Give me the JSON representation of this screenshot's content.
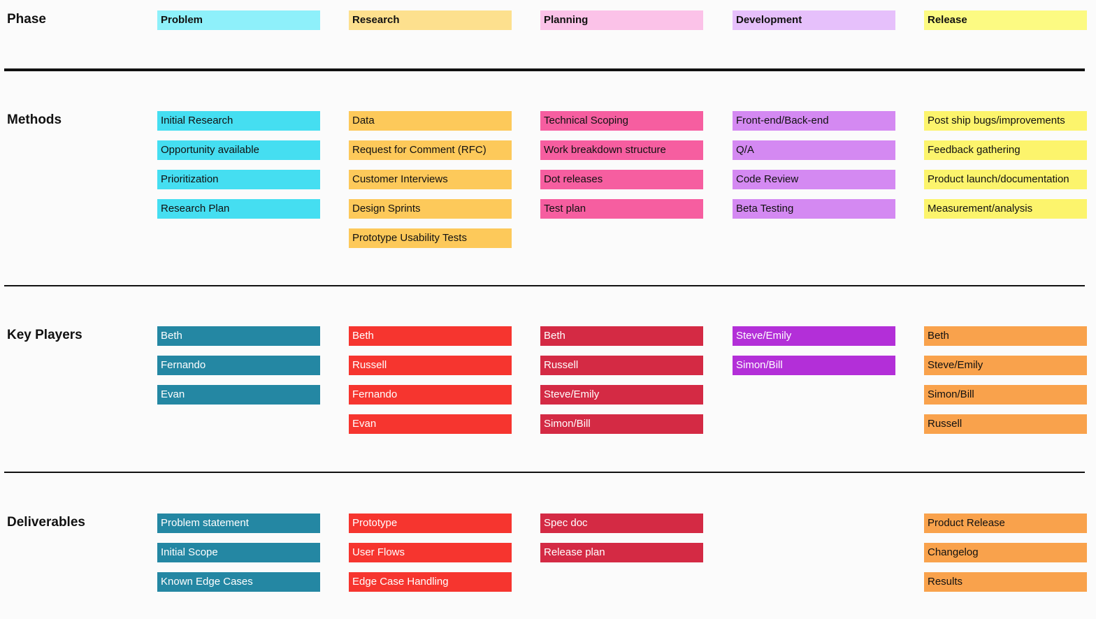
{
  "rows": [
    {
      "label": "Phase"
    },
    {
      "label": "Methods"
    },
    {
      "label": "Key Players"
    },
    {
      "label": "Deliverables"
    }
  ],
  "columns": [
    {
      "phase": "Problem",
      "colors": {
        "header": "#8ef0fa",
        "methods": "#45def1",
        "dark": "#2487a3"
      },
      "methods": [
        "Initial Research",
        "Opportunity available",
        "Prioritization",
        "Research Plan"
      ],
      "key_players": [
        "Beth",
        "Fernando",
        "Evan"
      ],
      "deliverables": [
        "Problem statement",
        "Initial Scope",
        "Known Edge Cases"
      ]
    },
    {
      "phase": "Research",
      "colors": {
        "header": "#fde08e",
        "methods": "#fdc95a",
        "dark": "#f6352f"
      },
      "methods": [
        "Data",
        "Request for Comment (RFC)",
        "Customer Interviews",
        "Design Sprints",
        "Prototype Usability Tests"
      ],
      "key_players": [
        "Beth",
        "Russell",
        "Fernando",
        "Evan"
      ],
      "deliverables": [
        "Prototype",
        "User Flows",
        "Edge Case Handling"
      ]
    },
    {
      "phase": "Planning",
      "colors": {
        "header": "#fbc2e8",
        "methods": "#f65ea0",
        "dark": "#d42a44"
      },
      "methods": [
        "Technical Scoping",
        "Work breakdown structure",
        "Dot releases",
        "Test plan"
      ],
      "key_players": [
        "Beth",
        "Russell",
        "Steve/Emily",
        "Simon/Bill"
      ],
      "deliverables": [
        "Spec doc",
        "Release plan"
      ]
    },
    {
      "phase": "Development",
      "colors": {
        "header": "#e6c0fb",
        "methods": "#d489f2",
        "dark": "#b32fd8"
      },
      "methods": [
        "Front-end/Back-end",
        "Q/A",
        "Code Review",
        "Beta Testing"
      ],
      "key_players": [
        "Steve/Emily",
        "Simon/Bill"
      ],
      "deliverables": []
    },
    {
      "phase": "Release",
      "colors": {
        "header": "#fcfa82",
        "methods": "#fcf46c",
        "dark": "#f9a24c"
      },
      "methods": [
        "Post ship bugs/improvements",
        "Feedback gathering",
        "Product launch/documentation",
        "Measurement/analysis"
      ],
      "key_players": [
        "Beth",
        "Steve/Emily",
        "Simon/Bill",
        "Russell"
      ],
      "deliverables": [
        "Product Release",
        "Changelog",
        "Results"
      ]
    }
  ]
}
